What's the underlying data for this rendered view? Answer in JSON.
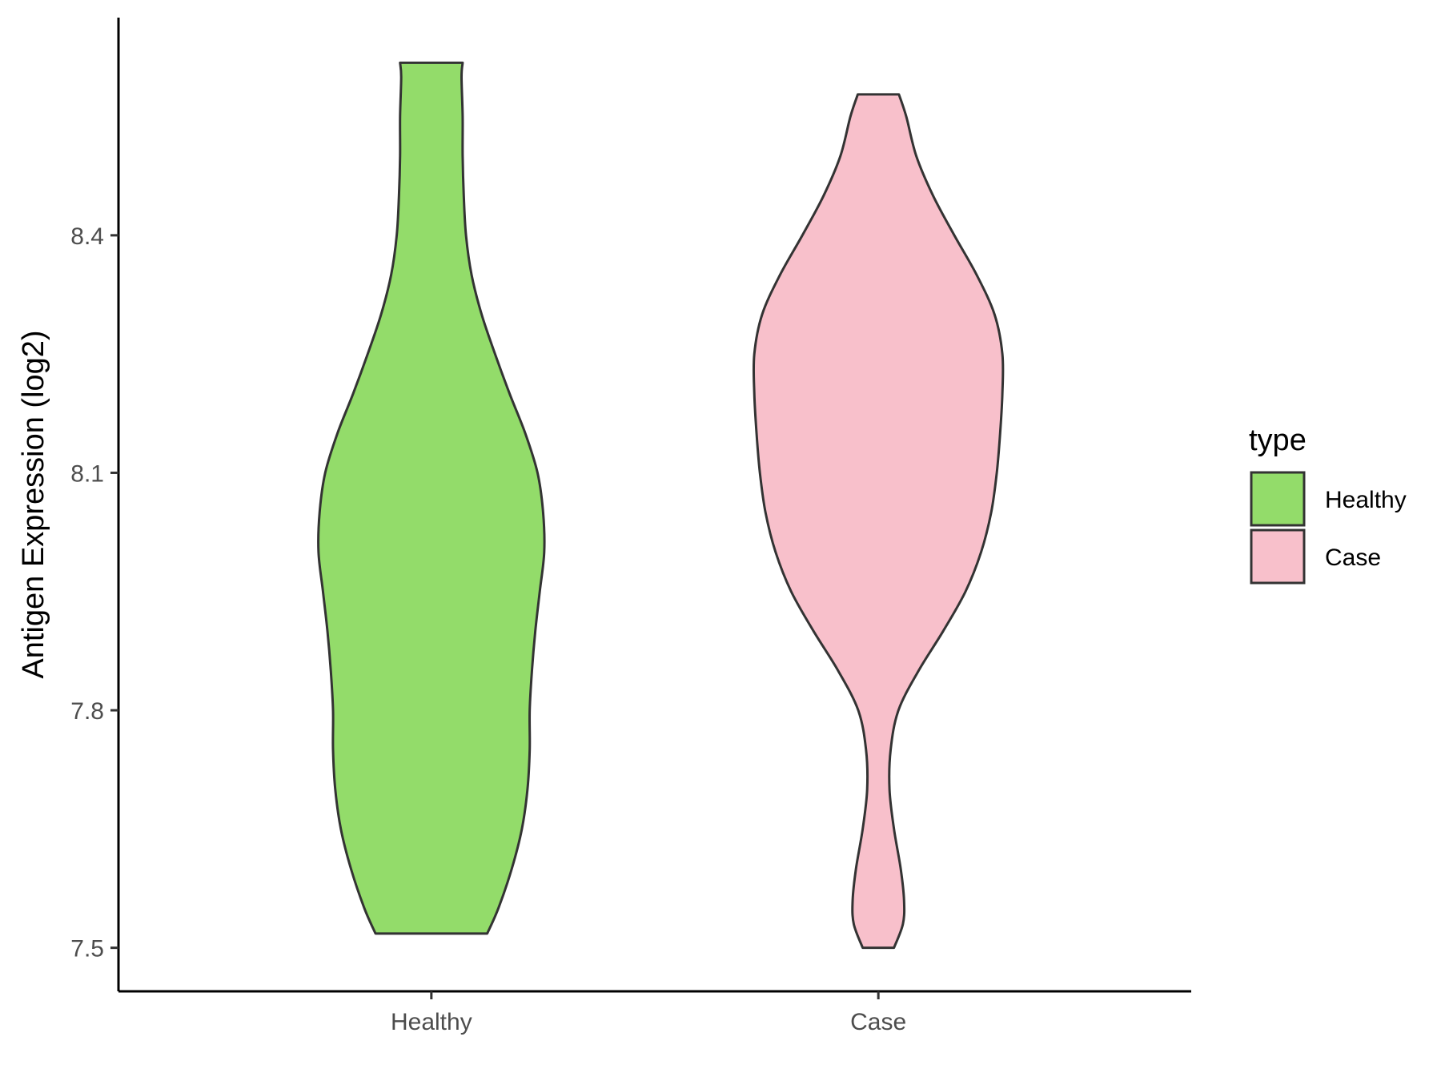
{
  "chart_data": {
    "type": "violin",
    "title": "",
    "xlabel": "",
    "ylabel": "Antigen Expression (log2)",
    "ylim": [
      7.445,
      8.675
    ],
    "yticks": [
      "7.5",
      "7.8",
      "8.1",
      "8.4"
    ],
    "categories": [
      "Healthy",
      "Case"
    ],
    "legend": {
      "title": "type",
      "position": "right",
      "items": [
        {
          "label": "Healthy",
          "color": "#93DC6A"
        },
        {
          "label": "Case",
          "color": "#F8C0CB"
        }
      ]
    },
    "series": [
      {
        "category": "Healthy",
        "color": "#93DC6A",
        "min": 7.518,
        "max": 8.618,
        "density_halfwidth": [
          [
            7.518,
            0.25
          ],
          [
            7.55,
            0.3
          ],
          [
            7.6,
            0.36
          ],
          [
            7.65,
            0.405
          ],
          [
            7.7,
            0.43
          ],
          [
            7.75,
            0.44
          ],
          [
            7.8,
            0.44
          ],
          [
            7.85,
            0.45
          ],
          [
            7.9,
            0.465
          ],
          [
            7.95,
            0.485
          ],
          [
            8.0,
            0.505
          ],
          [
            8.05,
            0.5
          ],
          [
            8.1,
            0.475
          ],
          [
            8.15,
            0.42
          ],
          [
            8.2,
            0.35
          ],
          [
            8.25,
            0.285
          ],
          [
            8.3,
            0.225
          ],
          [
            8.35,
            0.18
          ],
          [
            8.4,
            0.155
          ],
          [
            8.45,
            0.145
          ],
          [
            8.5,
            0.14
          ],
          [
            8.55,
            0.14
          ],
          [
            8.6,
            0.135
          ],
          [
            8.618,
            0.14
          ]
        ]
      },
      {
        "category": "Case",
        "color": "#F8C0CB",
        "min": 7.5,
        "max": 8.578,
        "density_halfwidth": [
          [
            7.5,
            0.07
          ],
          [
            7.53,
            0.11
          ],
          [
            7.56,
            0.115
          ],
          [
            7.6,
            0.1
          ],
          [
            7.65,
            0.07
          ],
          [
            7.7,
            0.05
          ],
          [
            7.75,
            0.055
          ],
          [
            7.8,
            0.09
          ],
          [
            7.85,
            0.18
          ],
          [
            7.9,
            0.29
          ],
          [
            7.95,
            0.39
          ],
          [
            8.0,
            0.46
          ],
          [
            8.05,
            0.505
          ],
          [
            8.1,
            0.53
          ],
          [
            8.15,
            0.545
          ],
          [
            8.2,
            0.555
          ],
          [
            8.25,
            0.555
          ],
          [
            8.3,
            0.52
          ],
          [
            8.35,
            0.44
          ],
          [
            8.4,
            0.34
          ],
          [
            8.45,
            0.245
          ],
          [
            8.5,
            0.17
          ],
          [
            8.55,
            0.125
          ],
          [
            8.578,
            0.092
          ]
        ]
      }
    ]
  }
}
